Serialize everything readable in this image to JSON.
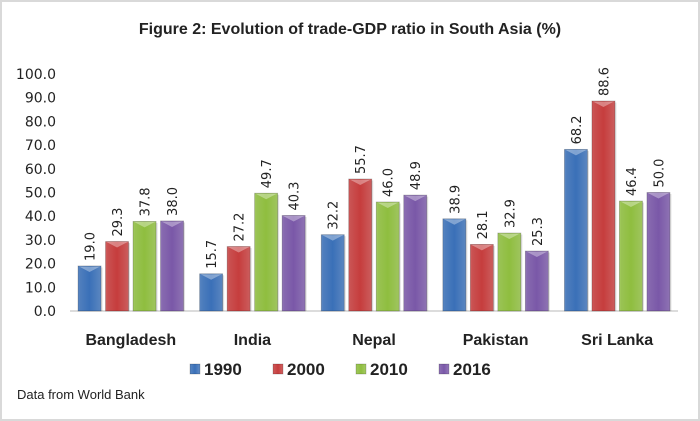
{
  "chart_data": {
    "type": "bar",
    "title": "Figure 2: Evolution of trade-GDP ratio in South Asia (%)",
    "xlabel": "",
    "ylabel": "",
    "ylim": [
      0,
      100
    ],
    "yticks": [
      "0.0",
      "10.0",
      "20.0",
      "30.0",
      "40.0",
      "50.0",
      "60.0",
      "70.0",
      "80.0",
      "90.0",
      "100.0"
    ],
    "grid": false,
    "legend_position": "bottom",
    "categories": [
      "Bangladesh",
      "India",
      "Nepal",
      "Pakistan",
      "Sri Lanka"
    ],
    "series": [
      {
        "name": "1990",
        "color": "#3a70b8",
        "values": [
          19.0,
          15.7,
          32.2,
          38.9,
          68.2
        ],
        "labels": [
          "19.0",
          "15.7",
          "32.2",
          "38.9",
          "68.2"
        ]
      },
      {
        "name": "2000",
        "color": "#c63d3d",
        "values": [
          29.3,
          27.2,
          55.7,
          28.1,
          88.6
        ],
        "labels": [
          "29.3",
          "27.2",
          "55.7",
          "28.1",
          "88.6"
        ]
      },
      {
        "name": "2010",
        "color": "#8fbe3f",
        "values": [
          37.8,
          49.7,
          46.0,
          32.9,
          46.4
        ],
        "labels": [
          "37.8",
          "49.7",
          "46.0",
          "32.9",
          "46.4"
        ]
      },
      {
        "name": "2016",
        "color": "#7a58a8",
        "values": [
          38.0,
          40.3,
          48.9,
          25.3,
          50.0
        ],
        "labels": [
          "38.0",
          "40.3",
          "48.9",
          "25.3",
          "50.0"
        ]
      }
    ],
    "note": "Data from World Bank"
  }
}
